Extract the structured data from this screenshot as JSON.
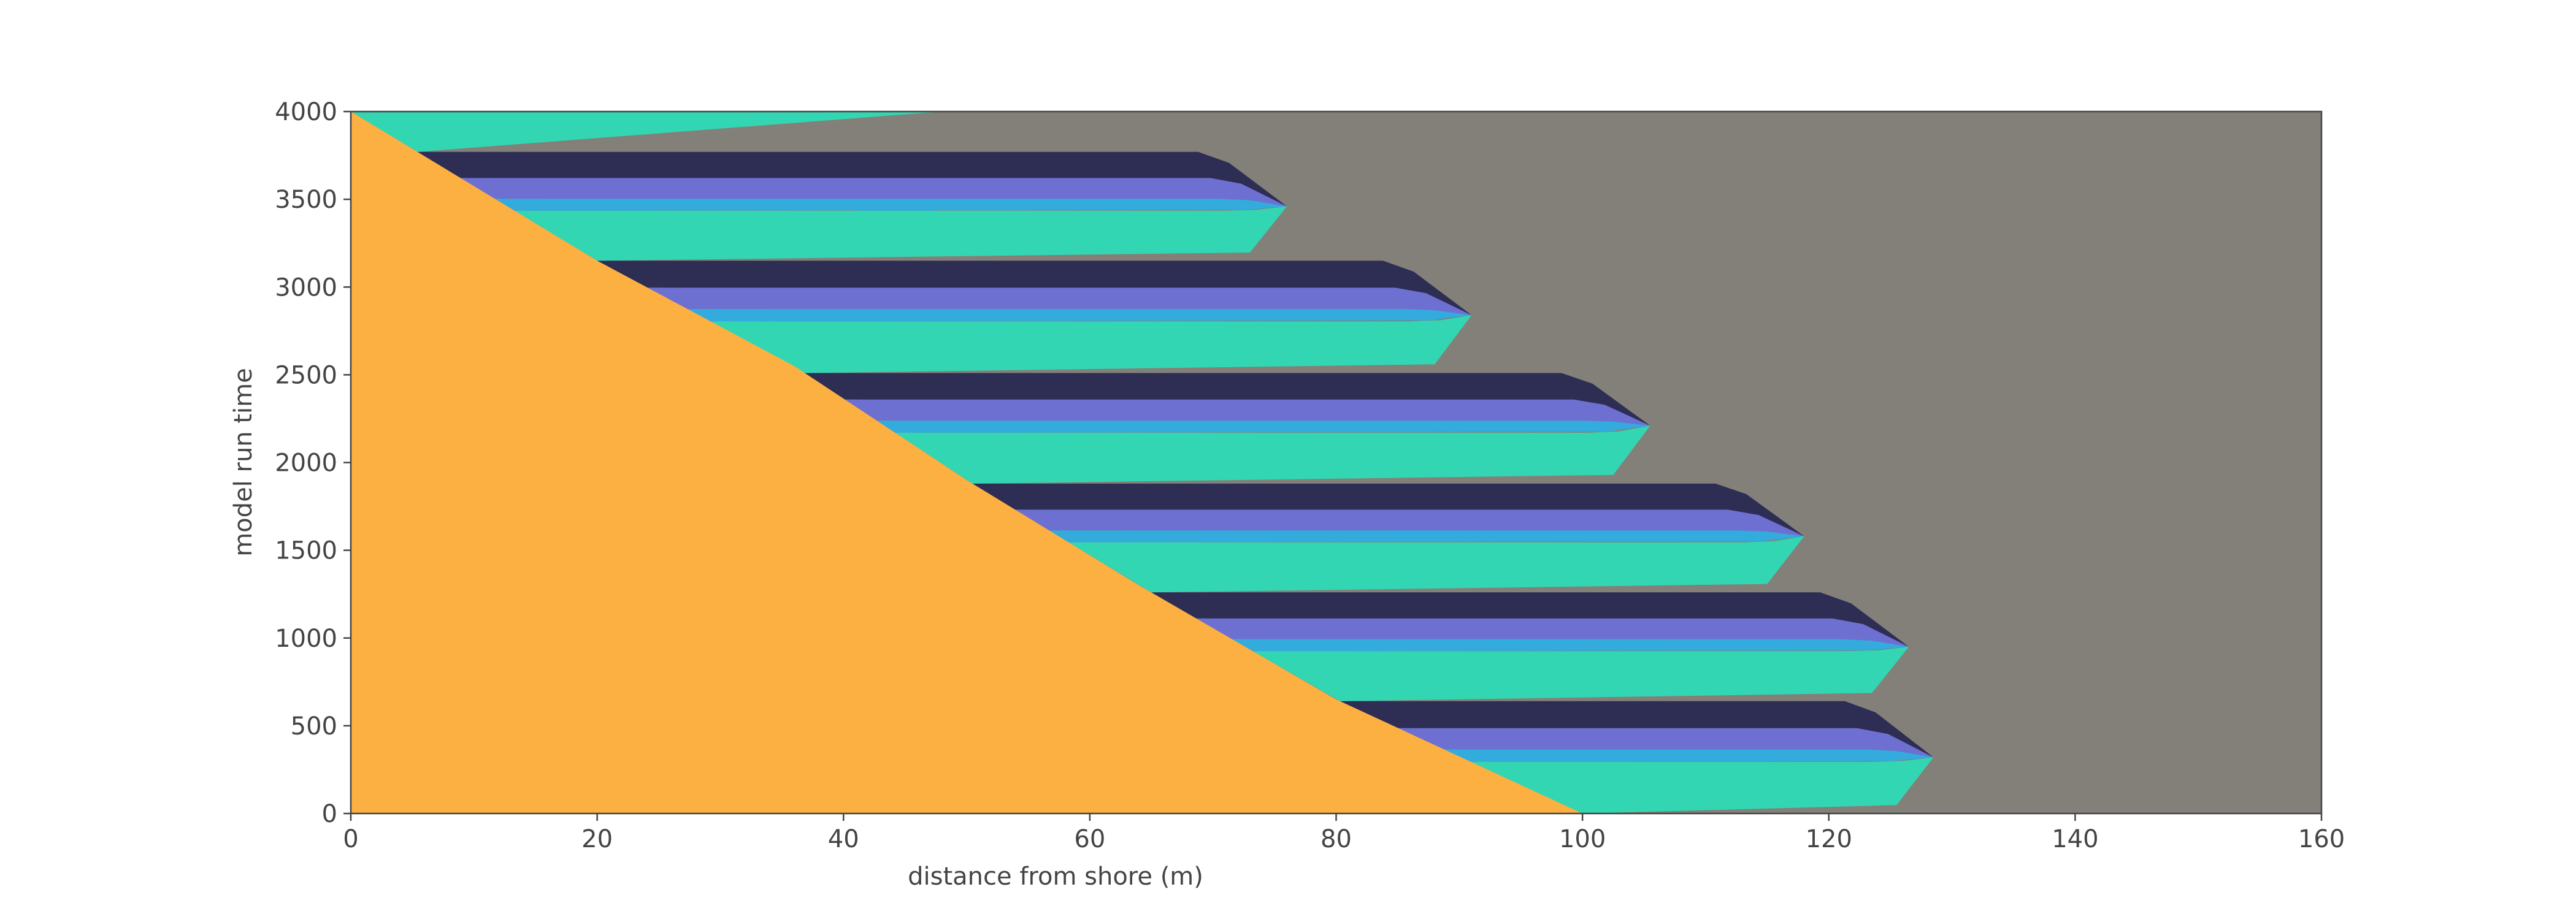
{
  "chart_data": {
    "type": "area",
    "title": "",
    "xlabel": "distance from shore (m)",
    "ylabel": "model run time",
    "xlim": [
      0,
      160
    ],
    "ylim": [
      0,
      4000
    ],
    "xticks": [
      0,
      20,
      40,
      60,
      80,
      100,
      120,
      140,
      160
    ],
    "yticks": [
      0,
      500,
      1000,
      1500,
      2000,
      2500,
      3000,
      3500,
      4000
    ],
    "grid": false,
    "legend": "none",
    "colors": {
      "background": "#828079",
      "shore": "#FDB042",
      "teal": "#33D6B2",
      "blue": "#33ABDC",
      "periwinkle": "#6E70D1",
      "navy": "#2E2D54",
      "frame": "#444444"
    },
    "shoreline": {
      "x": [
        100,
        80,
        64,
        50,
        36,
        20,
        0
      ],
      "y": [
        0,
        650,
        1300,
        1900,
        2550,
        3150,
        4000
      ]
    },
    "lobes": [
      {
        "t_start": 0,
        "t_end": 640,
        "x_start": 100,
        "x_tip": 128.5,
        "t_tip": 320
      },
      {
        "t_start": 640,
        "t_end": 1260,
        "x_start": 83,
        "x_tip": 126.5,
        "t_tip": 950
      },
      {
        "t_start": 1260,
        "t_end": 1880,
        "x_start": 67,
        "x_tip": 118,
        "t_tip": 1580
      },
      {
        "t_start": 1880,
        "t_end": 2510,
        "x_start": 51,
        "x_tip": 105.5,
        "t_tip": 2210
      },
      {
        "t_start": 2510,
        "t_end": 3150,
        "x_start": 36,
        "x_tip": 91,
        "t_tip": 2840
      },
      {
        "t_start": 3150,
        "t_end": 3770,
        "x_start": 21,
        "x_tip": 76,
        "t_tip": 3460
      },
      {
        "t_start": 3770,
        "t_end": 4000,
        "x_start": 5,
        "x_tip": 48,
        "t_tip": 4000
      }
    ]
  }
}
